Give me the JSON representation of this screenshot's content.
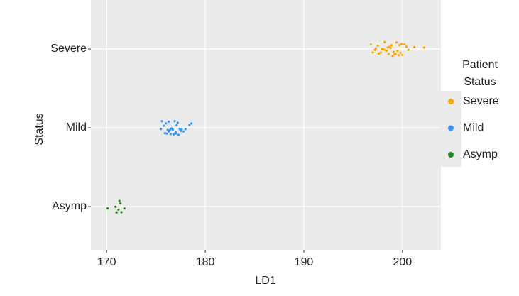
{
  "chart_data": {
    "type": "scatter",
    "x_label": "LD1",
    "y_label": "Status",
    "categories": [
      "Asymp",
      "Mild",
      "Severe"
    ],
    "xlim": [
      168.4,
      203.9
    ],
    "xticks": [
      170,
      180,
      190,
      200
    ],
    "grid": true,
    "legend_title": "Patient Status",
    "series": [
      {
        "name": "Severe",
        "color": "#FFA500",
        "category": "Severe",
        "values": [
          196.8,
          197.0,
          197.2,
          197.3,
          197.5,
          197.6,
          197.8,
          197.9,
          198.0,
          198.1,
          198.2,
          198.3,
          198.4,
          198.5,
          198.6,
          198.7,
          198.8,
          198.9,
          199.0,
          199.1,
          199.2,
          199.3,
          199.4,
          199.5,
          199.6,
          199.7,
          199.8,
          199.9,
          200.0,
          200.2,
          200.4,
          200.6,
          201.2,
          202.2
        ]
      },
      {
        "name": "Mild",
        "color": "#3399FF",
        "category": "Mild",
        "values": [
          175.5,
          175.6,
          175.8,
          175.9,
          176.0,
          176.1,
          176.2,
          176.3,
          176.3,
          176.4,
          176.5,
          176.5,
          176.6,
          176.7,
          176.7,
          176.8,
          176.9,
          176.9,
          177.0,
          177.0,
          177.1,
          177.2,
          177.3,
          177.4,
          177.5,
          177.6,
          177.8,
          178.0,
          178.4,
          178.6
        ]
      },
      {
        "name": "Asymp",
        "color": "#228B22",
        "category": "Asymp",
        "values": [
          170.1,
          170.9,
          171.0,
          171.2,
          171.3,
          171.4,
          171.5,
          171.8
        ]
      }
    ]
  }
}
